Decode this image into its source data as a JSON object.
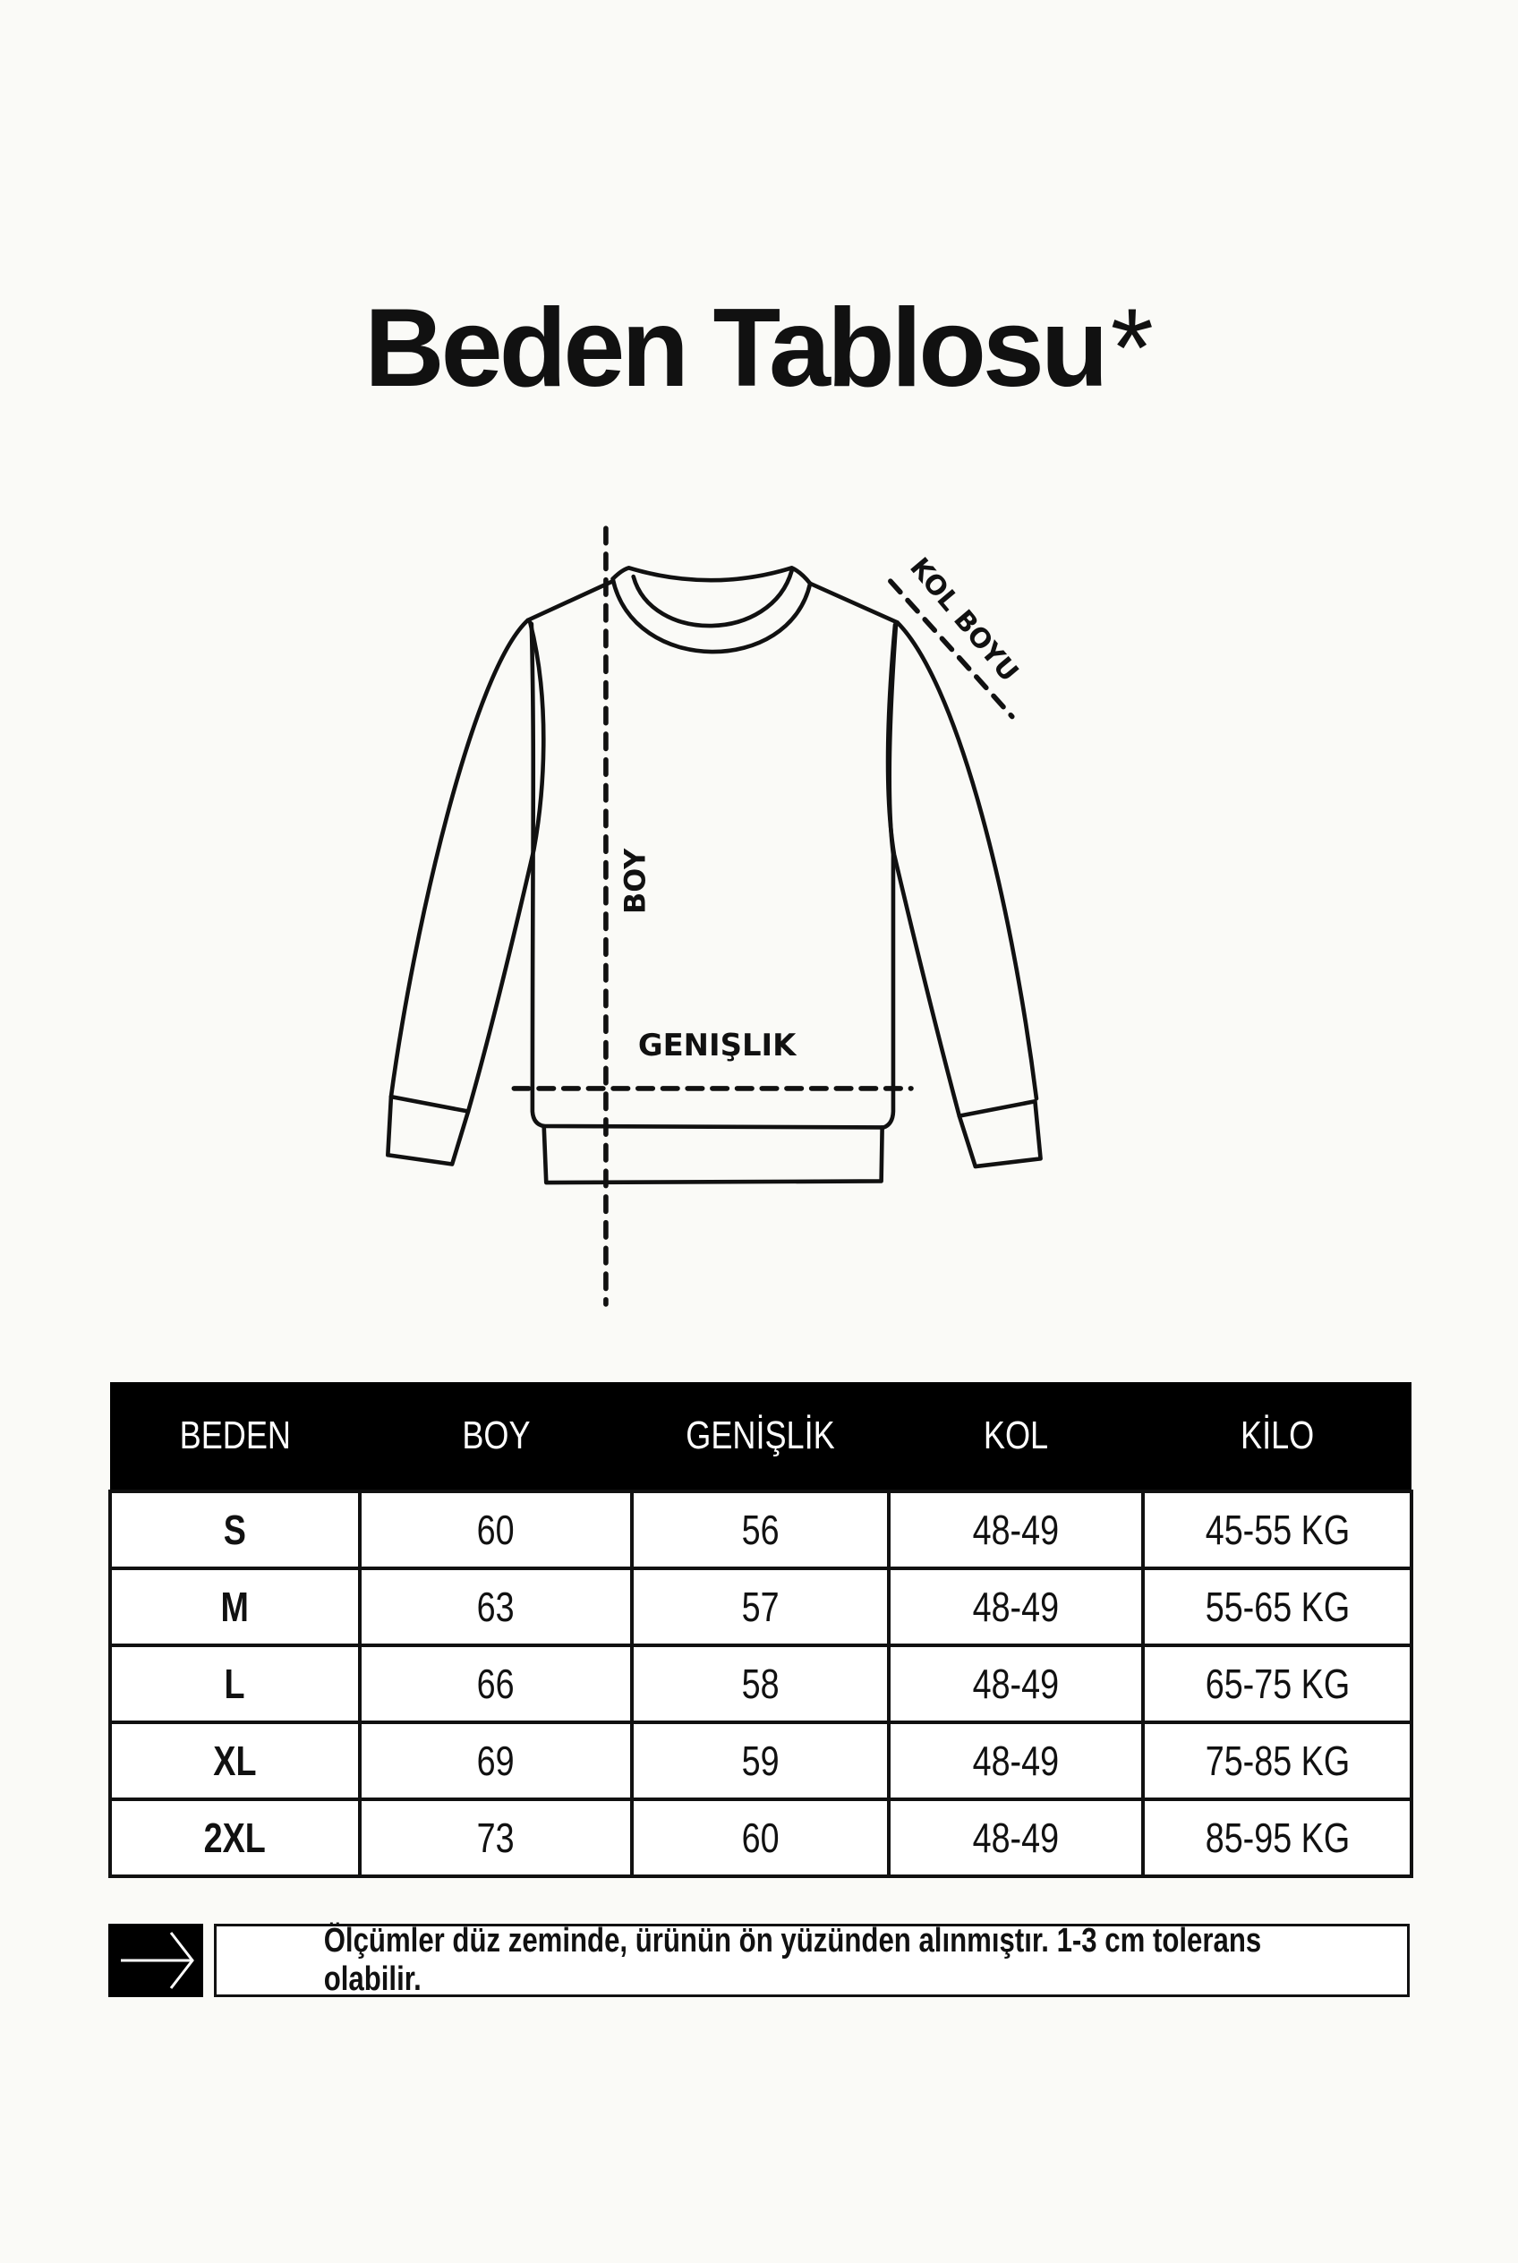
{
  "title": {
    "text": "Beden Tablosu",
    "symbol": "*"
  },
  "diagram": {
    "labels": {
      "length": "BOY",
      "width": "GENIŞLIK",
      "sleeve": "KOL BOYU"
    }
  },
  "size_table": {
    "headers": [
      "BEDEN",
      "BOY",
      "GENİŞLİK",
      "KOL",
      "KİLO"
    ],
    "rows": [
      [
        "S",
        "60",
        "56",
        "48-49",
        "45-55 KG"
      ],
      [
        "M",
        "63",
        "57",
        "48-49",
        "55-65 KG"
      ],
      [
        "L",
        "66",
        "58",
        "48-49",
        "65-75 KG"
      ],
      [
        "XL",
        "69",
        "59",
        "48-49",
        "75-85 KG"
      ],
      [
        "2XL",
        "73",
        "60",
        "48-49",
        "85-95 KG"
      ]
    ]
  },
  "note": {
    "icon": "arrow-right-icon",
    "text": "Ölçümler düz zeminde, ürünün ön yüzünden alınmıştır. 1-3 cm tolerans olabilir."
  }
}
